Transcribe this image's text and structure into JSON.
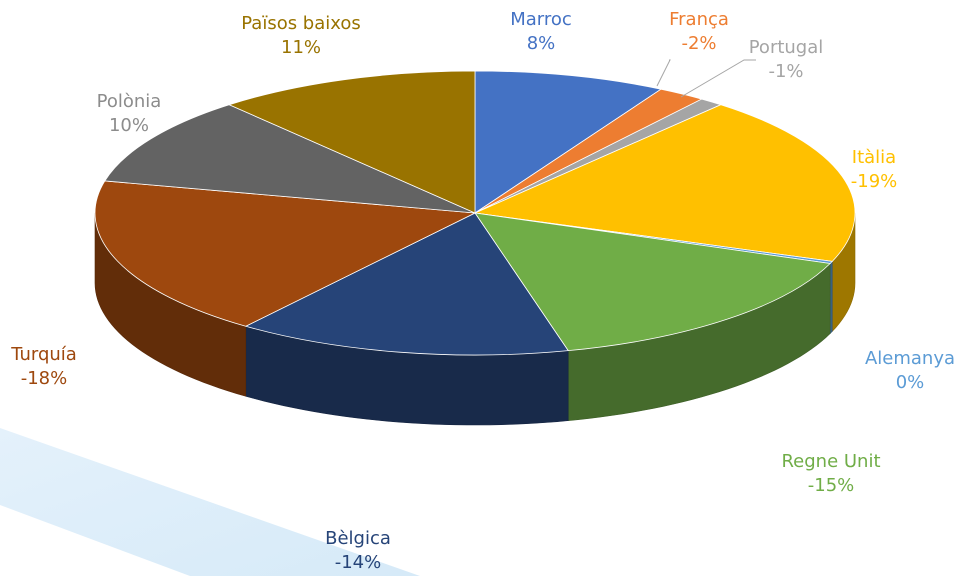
{
  "chart_data": {
    "type": "pie",
    "style": "3d",
    "value_unit": "%",
    "slices": [
      {
        "label": "Marroc",
        "value_text": "8%",
        "share": 8,
        "color": "#4472c4",
        "label_color": "#4472c4"
      },
      {
        "label": "França",
        "value_text": "-2%",
        "share": 2,
        "color": "#ed7d31",
        "label_color": "#ed7d31"
      },
      {
        "label": "Portugal",
        "value_text": "-1%",
        "share": 1,
        "color": "#a5a5a5",
        "label_color": "#a5a5a5"
      },
      {
        "label": "Itàlia",
        "value_text": "-19%",
        "share": 19,
        "color": "#ffc000",
        "label_color": "#ffc000"
      },
      {
        "label": "Alemanya",
        "value_text": "0%",
        "share": 0.25,
        "color": "#5b9bd5",
        "label_color": "#5b9bd5"
      },
      {
        "label": "Regne Unit",
        "value_text": "-15%",
        "share": 15,
        "color": "#70ad47",
        "label_color": "#70ad47"
      },
      {
        "label": "Bèlgica",
        "value_text": "-14%",
        "share": 14,
        "color": "#264478",
        "label_color": "#264478"
      },
      {
        "label": "Turquía",
        "value_text": "-18%",
        "share": 18,
        "color": "#9e480e",
        "label_color": "#9e480e"
      },
      {
        "label": "Polònia",
        "value_text": "10%",
        "share": 10,
        "color": "#636363",
        "label_color": "#8c8c8c"
      },
      {
        "label": "Països baixos",
        "value_text": "11%",
        "share": 11,
        "color": "#997300",
        "label_color": "#997300"
      }
    ]
  }
}
